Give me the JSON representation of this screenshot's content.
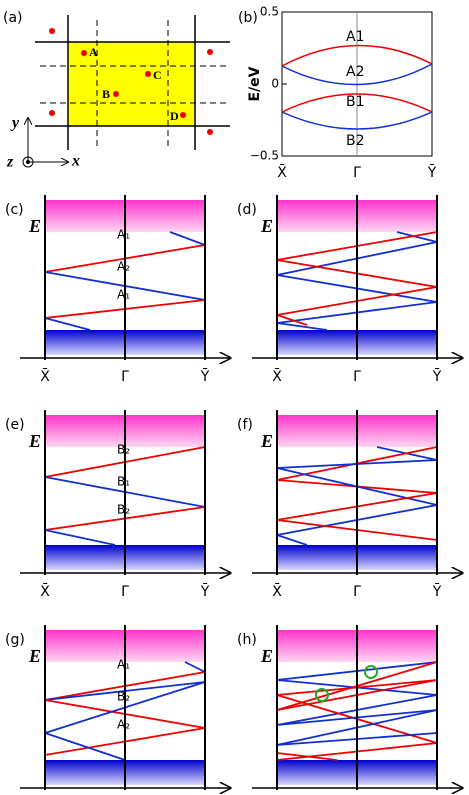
{
  "panels": [
    {
      "label": "(a)",
      "sites": [
        "A",
        "B",
        "C",
        "D"
      ],
      "axes": {
        "x": "x",
        "y": "y",
        "z": "z"
      }
    },
    {
      "label": "(b)",
      "ylabel": "E/eV",
      "ylim": [
        -0.5,
        0.5
      ],
      "yticks": [
        0.5,
        0,
        {
          "value": -0.5,
          "label": "−0.5"
        }
      ],
      "xticks": [
        "X̄",
        "Γ̄",
        "Ȳ"
      ],
      "bands": [
        "A1",
        "A2",
        "B1",
        "B2"
      ]
    },
    {
      "label": "(c)",
      "energy": "E",
      "xticks": [
        "X̄",
        "Γ̄",
        "Ȳ"
      ],
      "bands": [
        "A₁",
        "A₂",
        "A₁"
      ]
    },
    {
      "label": "(d)",
      "energy": "E",
      "xticks": [
        "X̄",
        "Γ̄",
        "Ȳ"
      ]
    },
    {
      "label": "(e)",
      "energy": "E",
      "xticks": [
        "X̄",
        "Γ̄",
        "Ȳ"
      ],
      "bands": [
        "B₂",
        "B₁",
        "B₂"
      ]
    },
    {
      "label": "(f)",
      "energy": "E",
      "xticks": [
        "X̄",
        "Γ̄",
        "Ȳ"
      ]
    },
    {
      "label": "(g)",
      "energy": "E",
      "xticks": [
        "X̄",
        "Γ̄",
        "Ȳ"
      ],
      "bands": [
        "A₁",
        "B₂",
        "A₂"
      ]
    },
    {
      "label": "(h)",
      "energy": "E",
      "xticks": [
        "X̄",
        "Γ̄",
        "Ȳ"
      ]
    }
  ]
}
